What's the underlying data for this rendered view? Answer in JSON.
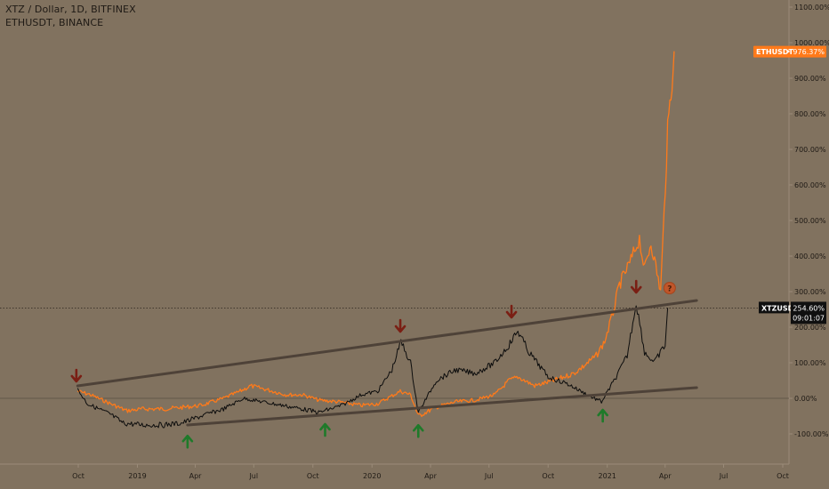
{
  "header": {
    "main_symbol": "XTZ / Dollar, 1D, BITFINEX",
    "compare_symbol": "ETHUSDT, BINANCE"
  },
  "chart_data": {
    "type": "line",
    "y_axis_unit": "%",
    "y_ticks": [
      "1100.00%",
      "1000.00%",
      "900.00%",
      "800.00%",
      "700.00%",
      "600.00%",
      "500.00%",
      "400.00%",
      "300.00%",
      "200.00%",
      "100.00%",
      "0.00%",
      "-100.00%"
    ],
    "y_tick_values": [
      1100,
      1000,
      900,
      800,
      700,
      600,
      500,
      400,
      300,
      200,
      100,
      0,
      -100
    ],
    "ylim": [
      -150,
      1100
    ],
    "x_ticks": [
      "Oct",
      "2019",
      "Apr",
      "Jul",
      "Oct",
      "2020",
      "Apr",
      "Jul",
      "Oct",
      "2021",
      "Apr",
      "Jul",
      "Oct"
    ],
    "x_tick_values": [
      "2018-10",
      "2019-01",
      "2019-04",
      "2019-07",
      "2019-10",
      "2020-01",
      "2020-04",
      "2020-07",
      "2020-10",
      "2021-01",
      "2021-04",
      "2021-07",
      "2021-10"
    ],
    "grid": false,
    "series": [
      {
        "name": "ETHUSDT",
        "color": "#ff7a1a",
        "last_label": "976.37%",
        "x": [
          "2018-09-30",
          "2018-10-20",
          "2018-11-20",
          "2018-12-15",
          "2019-01-10",
          "2019-02-10",
          "2019-03-15",
          "2019-04-10",
          "2019-05-15",
          "2019-06-10",
          "2019-06-26",
          "2019-07-20",
          "2019-08-20",
          "2019-09-15",
          "2019-10-10",
          "2019-11-10",
          "2019-12-15",
          "2020-01-10",
          "2020-02-14",
          "2020-03-01",
          "2020-03-13",
          "2020-04-10",
          "2020-05-10",
          "2020-06-10",
          "2020-07-10",
          "2020-08-01",
          "2020-08-15",
          "2020-09-10",
          "2020-10-10",
          "2020-11-10",
          "2020-11-25",
          "2020-12-15",
          "2020-12-28",
          "2021-01-10",
          "2021-01-20",
          "2021-02-05",
          "2021-02-20",
          "2021-02-28",
          "2021-03-10",
          "2021-03-25",
          "2021-04-05",
          "2021-04-15"
        ],
        "values": [
          20,
          10,
          -15,
          -35,
          -30,
          -30,
          -25,
          -20,
          0,
          20,
          35,
          25,
          10,
          10,
          -5,
          -10,
          -20,
          -15,
          20,
          10,
          -50,
          -25,
          -10,
          -5,
          10,
          50,
          60,
          35,
          50,
          70,
          90,
          120,
          160,
          240,
          320,
          380,
          450,
          360,
          440,
          300,
          750,
          976
        ]
      },
      {
        "name": "XTZUSD",
        "color": "#0d0d0d",
        "last_label": "254.60%",
        "countdown": "09:01:07",
        "x": [
          "2018-09-30",
          "2018-10-15",
          "2018-11-20",
          "2018-12-10",
          "2019-01-10",
          "2019-02-10",
          "2019-03-10",
          "2019-04-10",
          "2019-05-15",
          "2019-06-15",
          "2019-07-15",
          "2019-08-15",
          "2019-09-15",
          "2019-10-10",
          "2019-11-15",
          "2019-12-15",
          "2020-01-10",
          "2020-02-01",
          "2020-02-15",
          "2020-03-01",
          "2020-03-13",
          "2020-04-10",
          "2020-05-10",
          "2020-06-10",
          "2020-07-10",
          "2020-08-01",
          "2020-08-15",
          "2020-09-01",
          "2020-10-01",
          "2020-11-01",
          "2020-12-01",
          "2020-12-23",
          "2021-01-15",
          "2021-02-01",
          "2021-02-15",
          "2021-02-28",
          "2021-03-15",
          "2021-04-01",
          "2021-04-05"
        ],
        "values": [
          25,
          -15,
          -45,
          -70,
          -75,
          -75,
          -70,
          -50,
          -30,
          0,
          -10,
          -20,
          -30,
          -40,
          -20,
          10,
          20,
          80,
          160,
          100,
          -40,
          50,
          80,
          70,
          100,
          150,
          190,
          130,
          60,
          40,
          10,
          -10,
          60,
          120,
          270,
          130,
          100,
          150,
          254
        ]
      }
    ],
    "annotations": {
      "trendlines": [
        {
          "label": "upper",
          "from": [
            "2018-09-30",
            35
          ],
          "to": [
            "2021-05-20",
            275
          ]
        },
        {
          "label": "lower",
          "from": [
            "2019-03-20",
            -75
          ],
          "to": [
            "2021-05-20",
            30
          ]
        }
      ],
      "down_arrows": [
        {
          "x": "2018-09-28",
          "y": 35
        },
        {
          "x": "2020-02-14",
          "y": 175
        },
        {
          "x": "2020-08-05",
          "y": 215
        },
        {
          "x": "2021-02-15",
          "y": 285
        }
      ],
      "up_arrows": [
        {
          "x": "2019-03-20",
          "y": -78
        },
        {
          "x": "2019-10-20",
          "y": -45
        },
        {
          "x": "2020-03-13",
          "y": -48
        },
        {
          "x": "2020-12-25",
          "y": -5
        }
      ],
      "question_marks": [
        {
          "x": "2021-04-08",
          "y": 300,
          "text": "?"
        }
      ]
    }
  }
}
